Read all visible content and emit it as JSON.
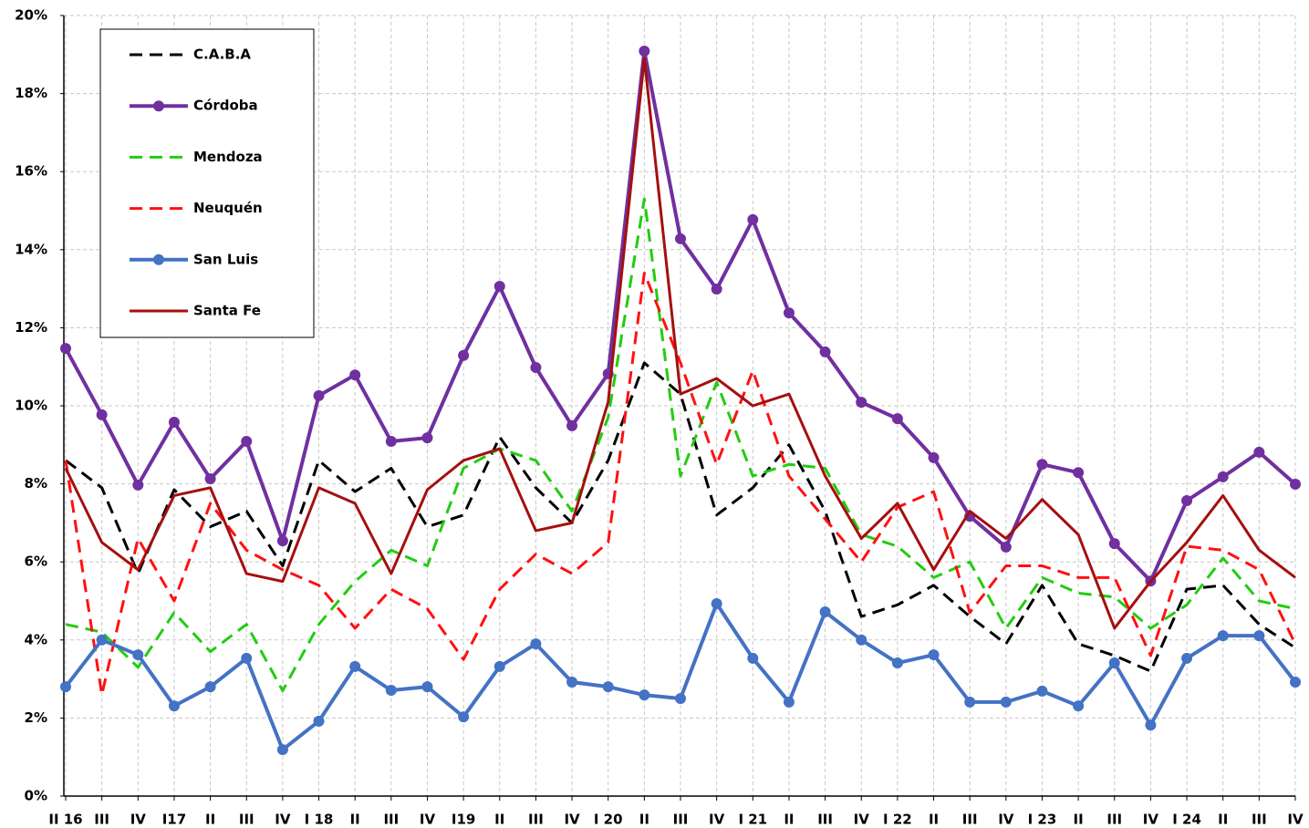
{
  "chart_data": {
    "type": "line",
    "categories": [
      "II 16",
      "III",
      "IV",
      "I17",
      "II",
      "III",
      "IV",
      "I 18",
      "II",
      "III",
      "IV",
      "I19",
      "II",
      "III",
      "IV",
      "I 20",
      "II",
      "III",
      "IV",
      "I 21",
      "II",
      "III",
      "IV",
      "I 22",
      "II",
      "III",
      "IV",
      "I 23",
      "II",
      "III",
      "IV",
      "I 24",
      "II",
      "III",
      "IV"
    ],
    "series": [
      {
        "name": "C.A.B.A",
        "color": "#000000",
        "line_style": "dashed",
        "marker": "none",
        "values": [
          8.6,
          7.9,
          5.7,
          7.85,
          6.9,
          7.3,
          5.9,
          8.6,
          7.8,
          8.4,
          6.9,
          7.2,
          9.2,
          7.9,
          7.0,
          8.6,
          11.1,
          10.3,
          7.2,
          7.9,
          9.0,
          7.3,
          4.6,
          4.9,
          5.4,
          4.6,
          3.9,
          5.4,
          3.9,
          3.6,
          3.2,
          5.3,
          5.4,
          4.4,
          3.8
        ]
      },
      {
        "name": "Córdoba",
        "color": "#7030a0",
        "line_style": "solid",
        "marker": "circle",
        "values": [
          11.47,
          9.77,
          7.97,
          9.58,
          8.13,
          9.09,
          6.54,
          10.26,
          10.79,
          9.09,
          9.18,
          11.29,
          13.06,
          10.98,
          9.49,
          10.82,
          19.09,
          14.28,
          12.99,
          14.77,
          12.38,
          11.38,
          10.09,
          9.67,
          8.67,
          7.17,
          6.38,
          8.5,
          8.29,
          6.47,
          5.51,
          7.57,
          8.18,
          8.81,
          7.99
        ]
      },
      {
        "name": "Mendoza",
        "color": "#22cc11",
        "line_style": "dashed",
        "marker": "none",
        "values": [
          4.4,
          4.2,
          3.3,
          4.7,
          3.7,
          4.4,
          2.7,
          4.4,
          5.5,
          6.3,
          5.9,
          8.4,
          8.9,
          8.6,
          7.3,
          9.7,
          15.3,
          8.2,
          10.6,
          8.2,
          8.5,
          8.4,
          6.7,
          6.4,
          5.6,
          6.0,
          4.3,
          5.6,
          5.2,
          5.1,
          4.3,
          4.9,
          6.1,
          5.0,
          4.8
        ]
      },
      {
        "name": "Neuquén",
        "color": "#ff1111",
        "line_style": "dashed",
        "marker": "none",
        "values": [
          8.6,
          2.6,
          6.6,
          5.0,
          7.5,
          6.3,
          5.8,
          5.4,
          4.3,
          5.3,
          4.8,
          3.5,
          5.3,
          6.2,
          5.7,
          6.5,
          13.4,
          11.1,
          8.5,
          10.9,
          8.2,
          7.1,
          6.0,
          7.4,
          7.8,
          4.7,
          5.9,
          5.9,
          5.6,
          5.6,
          3.6,
          6.4,
          6.3,
          5.8,
          3.9
        ]
      },
      {
        "name": "San Luis",
        "color": "#4472c4",
        "line_style": "solid",
        "marker": "circle",
        "values": [
          2.8,
          4.0,
          3.62,
          2.31,
          2.8,
          3.53,
          1.19,
          1.92,
          3.32,
          2.71,
          2.8,
          2.03,
          3.32,
          3.9,
          2.92,
          2.8,
          2.59,
          2.5,
          4.93,
          3.53,
          2.41,
          4.72,
          4.0,
          3.41,
          3.62,
          2.41,
          2.41,
          2.69,
          2.31,
          3.41,
          1.82,
          3.53,
          4.11,
          4.11,
          2.92
        ]
      },
      {
        "name": "Santa Fe",
        "color": "#a50f0f",
        "line_style": "solid",
        "marker": "none",
        "values": [
          8.4,
          6.5,
          5.8,
          7.7,
          7.9,
          5.7,
          5.5,
          7.9,
          7.5,
          5.7,
          7.85,
          8.6,
          8.9,
          6.8,
          7.0,
          10.1,
          18.9,
          10.3,
          10.7,
          10.0,
          10.3,
          8.2,
          6.6,
          7.5,
          5.8,
          7.3,
          6.6,
          7.6,
          6.7,
          4.3,
          5.5,
          6.5,
          7.7,
          6.3,
          5.6
        ]
      }
    ],
    "ylim": [
      0,
      20
    ],
    "yticks": [
      {
        "value": 0,
        "label": "0%"
      },
      {
        "value": 2,
        "label": "2%"
      },
      {
        "value": 4,
        "label": "4%"
      },
      {
        "value": 6,
        "label": "6%"
      },
      {
        "value": 8,
        "label": "8%"
      },
      {
        "value": 10,
        "label": "10%"
      },
      {
        "value": 12,
        "label": "12%"
      },
      {
        "value": 14,
        "label": "14%"
      },
      {
        "value": 16,
        "label": "16%"
      },
      {
        "value": 18,
        "label": "18%"
      },
      {
        "value": 20,
        "label": "20%"
      }
    ],
    "grid": true,
    "legend": "upper-left"
  }
}
